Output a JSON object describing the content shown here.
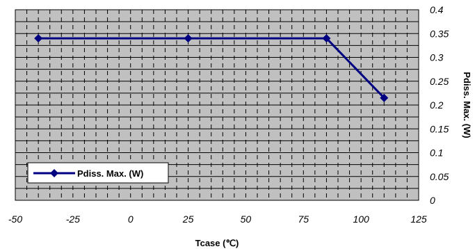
{
  "chart_data": {
    "type": "line",
    "xlabel": "Tcase (℃)",
    "ylabel": "Pdiss. Max. (W)",
    "xlim": [
      -50,
      125
    ],
    "ylim": [
      0,
      0.4
    ],
    "xticks": [
      "-50",
      "-25",
      "0",
      "25",
      "50",
      "75",
      "100",
      "125"
    ],
    "yticks": [
      "0",
      "0.05",
      "0.1",
      "0.15",
      "0.2",
      "0.25",
      "0.3",
      "0.35",
      "0.4"
    ],
    "y_axis_side": "right",
    "grid": true,
    "plot_background": "#c0c0c0",
    "legend_position": "bottom-left",
    "series": [
      {
        "name": "Pdiss. Max. (W)",
        "color": "#000080",
        "marker": "diamond",
        "x": [
          -40,
          25,
          85,
          110
        ],
        "y": [
          0.34,
          0.34,
          0.34,
          0.215
        ]
      }
    ]
  }
}
